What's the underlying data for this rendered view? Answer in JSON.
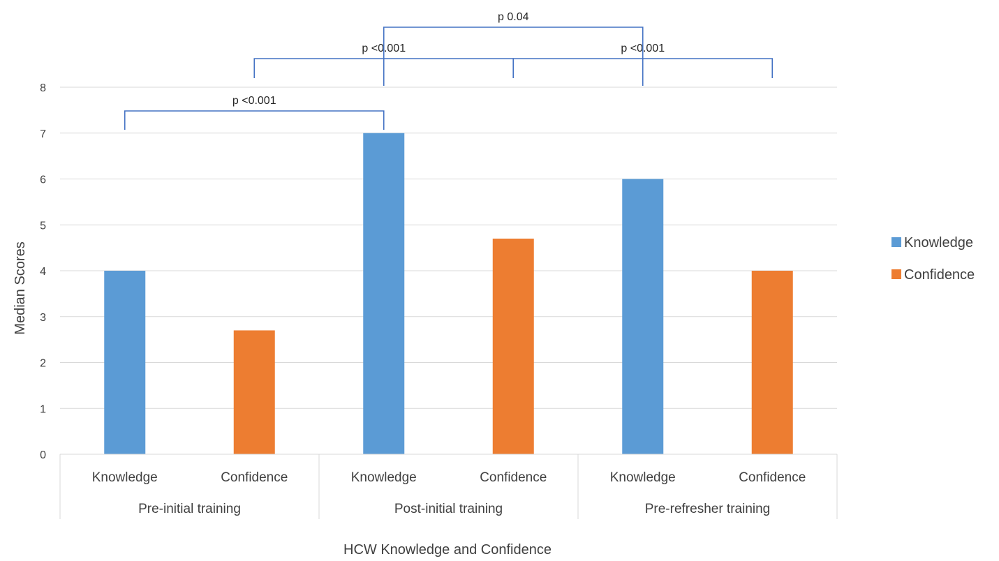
{
  "chart_data": {
    "type": "bar",
    "title": "",
    "xlabel": "HCW Knowledge and Confidence",
    "ylabel": "Median Scores",
    "ylim": [
      0,
      8
    ],
    "yticks": [
      0,
      1,
      2,
      3,
      4,
      5,
      6,
      7,
      8
    ],
    "grid": true,
    "legend_position": "right",
    "categories": [
      {
        "label": "Knowledge",
        "group": "Pre-initial training",
        "series": "Knowledge",
        "value": 4
      },
      {
        "label": "Confidence",
        "group": "Pre-initial training",
        "series": "Confidence",
        "value": 2.7
      },
      {
        "label": "Knowledge",
        "group": "Post-initial training",
        "series": "Knowledge",
        "value": 7
      },
      {
        "label": "Confidence",
        "group": "Post-initial training",
        "series": "Confidence",
        "value": 4.7
      },
      {
        "label": "Knowledge",
        "group": "Pre-refresher training",
        "series": "Knowledge",
        "value": 6
      },
      {
        "label": "Confidence",
        "group": "Pre-refresher training",
        "series": "Confidence",
        "value": 4
      }
    ],
    "groups": [
      "Pre-initial training",
      "Post-initial training",
      "Pre-refresher training"
    ],
    "series": [
      {
        "name": "Knowledge",
        "color": "#5B9BD5"
      },
      {
        "name": "Confidence",
        "color": "#ED7D31"
      }
    ],
    "annotations": [
      {
        "text": "p <0.001",
        "from_bar": 0,
        "to_bar": 2,
        "level": 0
      },
      {
        "text": "p <0.001",
        "from_bar": 1,
        "to_bar": 3,
        "level": 1
      },
      {
        "text": "p <0.001",
        "from_bar": 3,
        "to_bar": 5,
        "level": 1
      },
      {
        "text": "p 0.04",
        "from_bar": 2,
        "to_bar": 4,
        "level": 2
      }
    ],
    "colors": {
      "grid": "#D9D9D9",
      "bracket": "#4472C4",
      "text": "#404040"
    }
  }
}
